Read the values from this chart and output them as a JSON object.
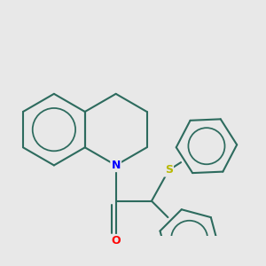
{
  "background_color": "#e8e8e8",
  "bond_color": "#2d6b5e",
  "N_color": "#0000ff",
  "O_color": "#ff0000",
  "S_color": "#b8b800",
  "bond_width": 1.5,
  "figsize": [
    3.0,
    3.0
  ],
  "dpi": 100,
  "xlim": [
    -1.6,
    2.2
  ],
  "ylim": [
    -1.5,
    1.5
  ]
}
